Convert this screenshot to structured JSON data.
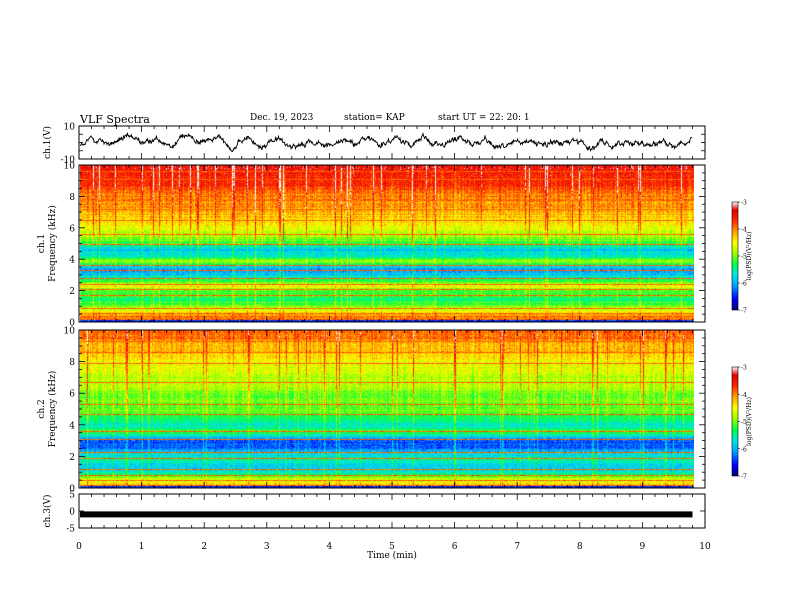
{
  "header": {
    "title": "VLF Spectra",
    "date": "Dec. 19, 2023",
    "station": "station= KAP",
    "start": "start  UT =   22: 20: 1"
  },
  "colors": {
    "scale": [
      "#000070",
      "#0000ff",
      "#00b0ff",
      "#00e8e8",
      "#00ff40",
      "#c8ff00",
      "#ffff00",
      "#ffa000",
      "#ff2000",
      "#e00000",
      "#ffffff"
    ]
  },
  "chart_data": [
    {
      "type": "line",
      "panel": "ch1-waveform",
      "ylabel": "ch.1(V)",
      "ylim": [
        -10,
        10
      ],
      "yticks": [
        "10",
        "-10"
      ],
      "xlim": [
        0,
        10
      ],
      "series": [
        {
          "values_note": "",
          "mean": 0,
          "amplitude": 4
        }
      ]
    },
    {
      "type": "heatmap",
      "panel": "ch1-spectrogram",
      "ylabel": "ch.1\nFrequency (kHz)",
      "ylabel_line1": "ch.1",
      "ylabel_line2": "Frequency (kHz)",
      "ylim": [
        0,
        10
      ],
      "yticks": [
        "0",
        "2",
        "4",
        "6",
        "8",
        "10"
      ],
      "xlim": [
        0,
        9.8
      ],
      "colorbar": {
        "label": "log(PSD)(V²/Hz)",
        "range": [
          -7,
          -3
        ],
        "ticks": [
          "-3",
          "-4",
          "-5",
          "-6",
          "-7"
        ]
      },
      "frequency_profile_logpsd": [
        [
          0,
          -4.0
        ],
        [
          0.3,
          -4.0
        ],
        [
          0.6,
          -4.3
        ],
        [
          1.0,
          -5.0
        ],
        [
          1.5,
          -5.4
        ],
        [
          2.0,
          -5.2
        ],
        [
          2.3,
          -4.5
        ],
        [
          2.6,
          -5.2
        ],
        [
          3.0,
          -5.8
        ],
        [
          3.3,
          -6.1
        ],
        [
          3.6,
          -5.8
        ],
        [
          3.9,
          -4.8
        ],
        [
          4.2,
          -5.6
        ],
        [
          4.6,
          -5.9
        ],
        [
          5.0,
          -5.3
        ],
        [
          5.5,
          -4.8
        ],
        [
          6.0,
          -4.6
        ],
        [
          6.5,
          -4.3
        ],
        [
          7.0,
          -4.2
        ],
        [
          7.5,
          -4.1
        ],
        [
          8.0,
          -4.0
        ],
        [
          8.5,
          -3.8
        ],
        [
          9.0,
          -3.6
        ],
        [
          9.5,
          -3.5
        ],
        [
          10.0,
          -3.4
        ]
      ],
      "lines_khz": [
        0.2,
        0.4,
        0.6,
        0.9,
        1.7,
        2.1,
        2.4,
        2.8,
        3.3,
        3.6,
        5.0,
        5.6,
        6.5,
        7.2,
        7.8,
        9.1,
        9.6
      ]
    },
    {
      "type": "heatmap",
      "panel": "ch2-spectrogram",
      "ylabel": "ch.2\nFrequency (kHz)",
      "ylabel_line1": "ch.2",
      "ylabel_line2": "Frequency (kHz)",
      "ylim": [
        0,
        10
      ],
      "yticks": [
        "0",
        "2",
        "4",
        "6",
        "8",
        "10"
      ],
      "xlim": [
        0,
        9.8
      ],
      "colorbar": {
        "label": "log(PSD)(V²/Hz)",
        "range": [
          -7,
          -3
        ],
        "ticks": [
          "-3",
          "-4",
          "-5",
          "-6",
          "-7"
        ]
      },
      "frequency_profile_logpsd": [
        [
          0,
          -4.2
        ],
        [
          0.3,
          -4.4
        ],
        [
          0.6,
          -4.8
        ],
        [
          1.0,
          -5.6
        ],
        [
          1.4,
          -5.9
        ],
        [
          1.8,
          -5.5
        ],
        [
          2.2,
          -5.8
        ],
        [
          2.6,
          -6.3
        ],
        [
          3.0,
          -6.4
        ],
        [
          3.3,
          -5.8
        ],
        [
          3.6,
          -5.2
        ],
        [
          4.0,
          -5.6
        ],
        [
          4.4,
          -5.4
        ],
        [
          4.8,
          -5.1
        ],
        [
          5.5,
          -5.0
        ],
        [
          6.0,
          -5.0
        ],
        [
          6.5,
          -4.8
        ],
        [
          7.0,
          -4.8
        ],
        [
          7.5,
          -4.6
        ],
        [
          8.0,
          -4.5
        ],
        [
          8.5,
          -4.3
        ],
        [
          9.0,
          -4.2
        ],
        [
          9.5,
          -4.0
        ],
        [
          10.0,
          -3.9
        ]
      ],
      "lines_khz": [
        0.2,
        0.5,
        0.8,
        1.2,
        1.9,
        2.3,
        3.1,
        3.6,
        4.7,
        5.3,
        6.7,
        7.9,
        8.6,
        9.3
      ]
    },
    {
      "type": "line",
      "panel": "ch3-waveform",
      "ylabel": "ch.3(V)",
      "ylim": [
        -5,
        5
      ],
      "yticks": [
        "5",
        "0",
        "-5"
      ],
      "xlim": [
        0,
        10
      ],
      "series": [
        {
          "constant": -1
        }
      ]
    }
  ],
  "xaxis": {
    "label": "Time (min)",
    "ticks": [
      "0",
      "1",
      "2",
      "3",
      "4",
      "5",
      "6",
      "7",
      "8",
      "9",
      "10"
    ]
  }
}
